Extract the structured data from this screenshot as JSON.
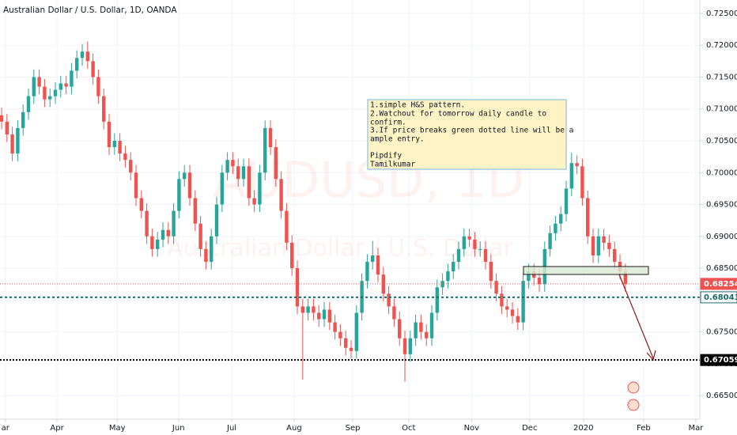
{
  "chart_data": {
    "type": "candlestick",
    "title": "Australian Dollar / U.S. Dollar, 1D, OANDA",
    "watermark": "AUDUSD, 1D",
    "watermark_subtitle": "Australian Dollar / U.S. Dollar",
    "up_color": "#26a69a",
    "down_color": "#ef5350",
    "grid": true,
    "xlim": [
      -0.294,
      129.85
    ],
    "ylim": [
      0.6613,
      0.7271
    ],
    "xticks": [
      {
        "value": 0.7,
        "label": "ar"
      },
      {
        "value": 10.3,
        "label": "Apr"
      },
      {
        "value": 21.5,
        "label": "May"
      },
      {
        "value": 32.9,
        "label": "Jun"
      },
      {
        "value": 42.8,
        "label": "Jul"
      },
      {
        "value": 54.4,
        "label": "Aug"
      },
      {
        "value": 65.3,
        "label": "Sep"
      },
      {
        "value": 75.7,
        "label": "Oct"
      },
      {
        "value": 87.4,
        "label": "Nov"
      },
      {
        "value": 98.2,
        "label": "Dec"
      },
      {
        "value": 108.2,
        "label": "2020"
      },
      {
        "value": 119.4,
        "label": "Feb"
      },
      {
        "value": 129.1,
        "label": "Mar"
      }
    ],
    "yticks": [
      {
        "value": 0.665,
        "label": "0.66500"
      },
      {
        "value": 0.67,
        "label": "0.67000"
      },
      {
        "value": 0.675,
        "label": "0.67500"
      },
      {
        "value": 0.68,
        "label": "0.68000"
      },
      {
        "value": 0.685,
        "label": "0.68500"
      },
      {
        "value": 0.69,
        "label": "0.69000"
      },
      {
        "value": 0.695,
        "label": "0.69500"
      },
      {
        "value": 0.7,
        "label": "0.70000"
      },
      {
        "value": 0.705,
        "label": "0.70500"
      },
      {
        "value": 0.71,
        "label": "0.71000"
      },
      {
        "value": 0.715,
        "label": "0.71500"
      },
      {
        "value": 0.72,
        "label": "0.72000"
      },
      {
        "value": 0.725,
        "label": "0.72500"
      }
    ],
    "price_lines": [
      {
        "value": 0.68254,
        "color": "#ef5350",
        "style": "dotted"
      },
      {
        "value": 0.68043,
        "color": "#1e6b6b",
        "style": "dashed"
      },
      {
        "value": 0.67059,
        "color": "#000000",
        "style": "dotted"
      }
    ],
    "annotation": [
      "1.simple H&S pattern.",
      "2.Watchout for tomorrow daily candle to",
      "confirm.",
      "3.If price breaks green dotted line will be a",
      "ample entry.",
      "Pipdify",
      "Tamilkumar"
    ],
    "open": [
      0.709,
      0.708,
      0.706,
      0.703,
      0.707,
      0.7095,
      0.712,
      0.715,
      0.7135,
      0.7115,
      0.712,
      0.713,
      0.714,
      0.7135,
      0.716,
      0.718,
      0.719,
      0.7175,
      0.715,
      0.712,
      0.708,
      0.704,
      0.705,
      0.703,
      0.702,
      0.7,
      0.696,
      0.694,
      0.69,
      0.688,
      0.6895,
      0.691,
      0.69,
      0.694,
      0.699,
      0.7,
      0.696,
      0.692,
      0.688,
      0.686,
      0.69,
      0.695,
      0.7,
      0.702,
      0.701,
      0.699,
      0.701,
      0.696,
      0.695,
      0.7,
      0.707,
      0.704,
      0.699,
      0.694,
      0.689,
      0.685,
      0.679,
      0.678,
      0.679,
      0.678,
      0.677,
      0.6785,
      0.6765,
      0.675,
      0.674,
      0.6725,
      0.672,
      0.678,
      0.683,
      0.686,
      0.687,
      0.684,
      0.681,
      0.679,
      0.677,
      0.674,
      0.6715,
      0.674,
      0.6765,
      0.675,
      0.674,
      0.678,
      0.682,
      0.683,
      0.6845,
      0.686,
      0.688,
      0.69,
      0.6895,
      0.688,
      0.688,
      0.686,
      0.683,
      0.681,
      0.679,
      0.6785,
      0.6775,
      0.6765,
      0.683,
      0.6845,
      0.6835,
      0.6825,
      0.688,
      0.6905,
      0.692,
      0.6935,
      0.6975,
      0.7015,
      0.701,
      0.696,
      0.69,
      0.687,
      0.69,
      0.689,
      0.688,
      0.686,
      0.6845
    ],
    "high": [
      0.7102,
      0.7092,
      0.7072,
      0.7082,
      0.7107,
      0.7132,
      0.7162,
      0.7162,
      0.7147,
      0.7132,
      0.7142,
      0.7152,
      0.7152,
      0.7172,
      0.7192,
      0.7202,
      0.7206,
      0.7187,
      0.7162,
      0.7132,
      0.7092,
      0.7062,
      0.7062,
      0.7042,
      0.7032,
      0.7012,
      0.6972,
      0.6952,
      0.6912,
      0.6907,
      0.6922,
      0.6922,
      0.6952,
      0.7002,
      0.7012,
      0.7012,
      0.6972,
      0.6932,
      0.6892,
      0.6912,
      0.6962,
      0.7012,
      0.7032,
      0.7032,
      0.7022,
      0.7022,
      0.7022,
      0.6972,
      0.7012,
      0.7082,
      0.7082,
      0.7052,
      0.7002,
      0.6952,
      0.6902,
      0.6862,
      0.6802,
      0.6802,
      0.6802,
      0.6792,
      0.6797,
      0.6797,
      0.6777,
      0.6762,
      0.6752,
      0.6737,
      0.6792,
      0.6842,
      0.6872,
      0.6893,
      0.6882,
      0.6852,
      0.6822,
      0.6802,
      0.6782,
      0.6752,
      0.6752,
      0.6777,
      0.6777,
      0.6762,
      0.6792,
      0.6832,
      0.6842,
      0.6857,
      0.6872,
      0.6892,
      0.6912,
      0.6912,
      0.6907,
      0.6892,
      0.6892,
      0.6872,
      0.6842,
      0.6822,
      0.6802,
      0.6797,
      0.6787,
      0.6842,
      0.6857,
      0.6857,
      0.6847,
      0.6892,
      0.6917,
      0.6932,
      0.6947,
      0.6987,
      0.7031,
      0.7027,
      0.7022,
      0.6972,
      0.6912,
      0.6912,
      0.6912,
      0.6902,
      0.6892,
      0.6872,
      0.6857
    ],
    "low": [
      0.7068,
      0.7048,
      0.7018,
      0.7018,
      0.7058,
      0.7083,
      0.7108,
      0.7123,
      0.7103,
      0.7103,
      0.7108,
      0.7118,
      0.7123,
      0.7123,
      0.7148,
      0.7168,
      0.7163,
      0.7138,
      0.7108,
      0.7068,
      0.7028,
      0.7028,
      0.7018,
      0.7008,
      0.6988,
      0.6948,
      0.6928,
      0.6888,
      0.6868,
      0.6868,
      0.6883,
      0.6888,
      0.6888,
      0.6928,
      0.6978,
      0.6948,
      0.6908,
      0.6868,
      0.6848,
      0.6848,
      0.6888,
      0.6938,
      0.6988,
      0.6998,
      0.6978,
      0.6978,
      0.6948,
      0.6938,
      0.6938,
      0.6988,
      0.7028,
      0.6978,
      0.6928,
      0.6878,
      0.6838,
      0.6778,
      0.6675,
      0.6768,
      0.6768,
      0.6758,
      0.6758,
      0.6753,
      0.6738,
      0.6728,
      0.6713,
      0.6708,
      0.6708,
      0.6768,
      0.6818,
      0.6848,
      0.6828,
      0.6798,
      0.6778,
      0.6758,
      0.6728,
      0.6672,
      0.6703,
      0.6728,
      0.6738,
      0.6728,
      0.6728,
      0.6768,
      0.6808,
      0.6818,
      0.6833,
      0.6848,
      0.6868,
      0.6883,
      0.6868,
      0.6868,
      0.6848,
      0.6818,
      0.6798,
      0.6778,
      0.6773,
      0.6763,
      0.6753,
      0.6753,
      0.6818,
      0.6823,
      0.6813,
      0.6813,
      0.6868,
      0.6893,
      0.6908,
      0.6923,
      0.6963,
      0.6998,
      0.6948,
      0.6888,
      0.6858,
      0.6858,
      0.6878,
      0.6868,
      0.6848,
      0.6833,
      0.6813
    ],
    "close": [
      0.708,
      0.706,
      0.703,
      0.707,
      0.7095,
      0.712,
      0.715,
      0.7135,
      0.7115,
      0.712,
      0.713,
      0.714,
      0.7135,
      0.716,
      0.718,
      0.719,
      0.7175,
      0.715,
      0.712,
      0.708,
      0.704,
      0.705,
      0.703,
      0.702,
      0.7,
      0.696,
      0.694,
      0.69,
      0.688,
      0.6895,
      0.691,
      0.69,
      0.694,
      0.699,
      0.7,
      0.696,
      0.692,
      0.688,
      0.686,
      0.69,
      0.695,
      0.7,
      0.702,
      0.701,
      0.699,
      0.701,
      0.696,
      0.695,
      0.7,
      0.707,
      0.704,
      0.699,
      0.694,
      0.689,
      0.685,
      0.679,
      0.678,
      0.679,
      0.678,
      0.677,
      0.6785,
      0.6765,
      0.675,
      0.674,
      0.6725,
      0.672,
      0.678,
      0.683,
      0.686,
      0.687,
      0.684,
      0.681,
      0.679,
      0.677,
      0.674,
      0.6715,
      0.674,
      0.6765,
      0.675,
      0.674,
      0.678,
      0.682,
      0.683,
      0.6845,
      0.686,
      0.688,
      0.69,
      0.6895,
      0.688,
      0.688,
      0.686,
      0.683,
      0.681,
      0.679,
      0.6785,
      0.6775,
      0.6765,
      0.683,
      0.6845,
      0.6835,
      0.6825,
      0.688,
      0.6905,
      0.692,
      0.6935,
      0.6975,
      0.7015,
      0.701,
      0.696,
      0.69,
      0.687,
      0.69,
      0.689,
      0.688,
      0.686,
      0.6845,
      0.6825
    ]
  }
}
